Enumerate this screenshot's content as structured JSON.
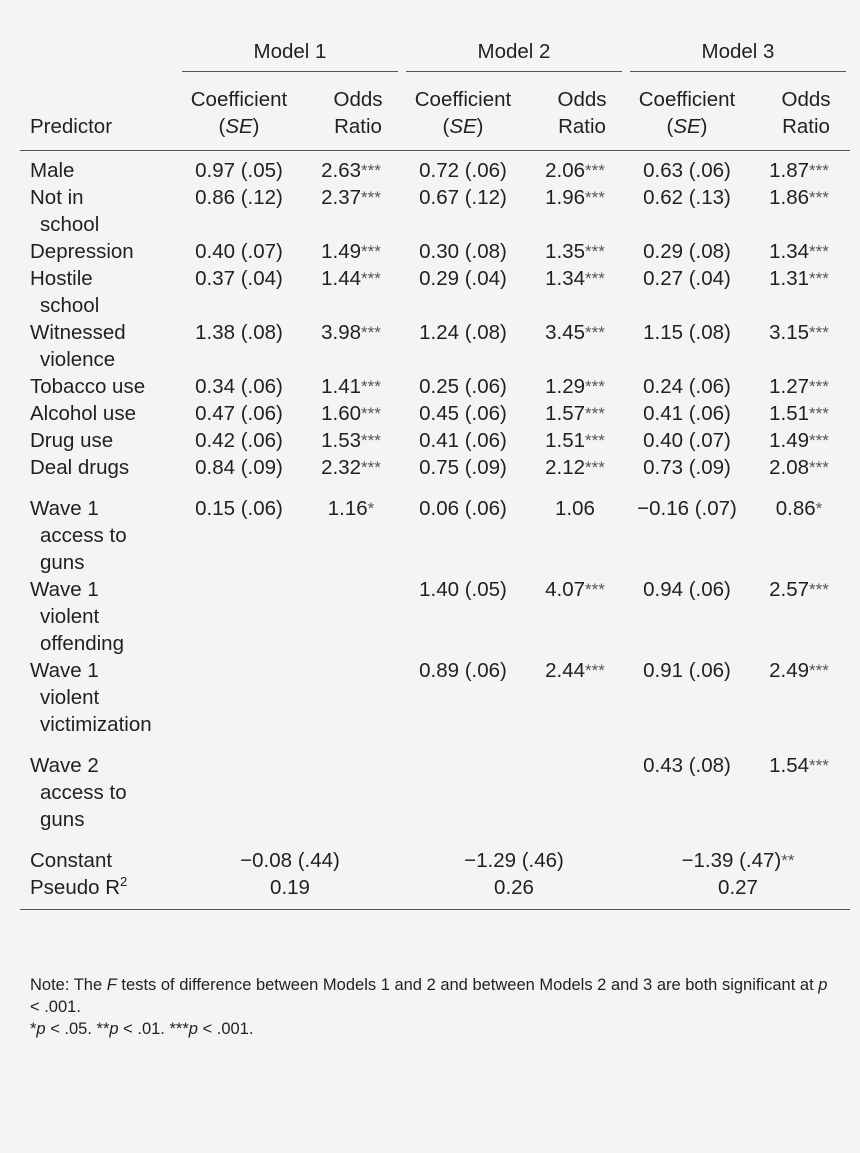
{
  "header": {
    "models": [
      "Model 1",
      "Model 2",
      "Model 3"
    ],
    "predictor_label": "Predictor",
    "coef_label_line1": "Coefficient",
    "coef_label_line2_pre": "(",
    "coef_label_se": "SE",
    "coef_label_line2_post": ")",
    "odds_label_line1": "Odds",
    "odds_label_line2": "Ratio"
  },
  "rows": [
    {
      "label": [
        "Male"
      ],
      "cells": [
        [
          "0.97 (.05)",
          "2.63",
          "***"
        ],
        [
          "0.72 (.06)",
          "2.06",
          "***"
        ],
        [
          "0.63 (.06)",
          "1.87",
          "***"
        ]
      ]
    },
    {
      "label": [
        "Not in",
        "school"
      ],
      "cells": [
        [
          "0.86 (.12)",
          "2.37",
          "***"
        ],
        [
          "0.67 (.12)",
          "1.96",
          "***"
        ],
        [
          "0.62 (.13)",
          "1.86",
          "***"
        ]
      ]
    },
    {
      "label": [
        "Depression"
      ],
      "cells": [
        [
          "0.40 (.07)",
          "1.49",
          "***"
        ],
        [
          "0.30 (.08)",
          "1.35",
          "***"
        ],
        [
          "0.29 (.08)",
          "1.34",
          "***"
        ]
      ]
    },
    {
      "label": [
        "Hostile",
        "school"
      ],
      "cells": [
        [
          "0.37 (.04)",
          "1.44",
          "***"
        ],
        [
          "0.29 (.04)",
          "1.34",
          "***"
        ],
        [
          "0.27 (.04)",
          "1.31",
          "***"
        ]
      ]
    },
    {
      "label": [
        "Witnessed",
        "violence"
      ],
      "cells": [
        [
          "1.38 (.08)",
          "3.98",
          "***"
        ],
        [
          "1.24 (.08)",
          "3.45",
          "***"
        ],
        [
          "1.15 (.08)",
          "3.15",
          "***"
        ]
      ]
    },
    {
      "label": [
        "Tobacco use"
      ],
      "cells": [
        [
          "0.34 (.06)",
          "1.41",
          "***"
        ],
        [
          "0.25 (.06)",
          "1.29",
          "***"
        ],
        [
          "0.24 (.06)",
          "1.27",
          "***"
        ]
      ]
    },
    {
      "label": [
        "Alcohol use"
      ],
      "cells": [
        [
          "0.47 (.06)",
          "1.60",
          "***"
        ],
        [
          "0.45 (.06)",
          "1.57",
          "***"
        ],
        [
          "0.41 (.06)",
          "1.51",
          "***"
        ]
      ]
    },
    {
      "label": [
        "Drug use"
      ],
      "cells": [
        [
          "0.42 (.06)",
          "1.53",
          "***"
        ],
        [
          "0.41 (.06)",
          "1.51",
          "***"
        ],
        [
          "0.40 (.07)",
          "1.49",
          "***"
        ]
      ]
    },
    {
      "label": [
        "Deal drugs"
      ],
      "cells": [
        [
          "0.84 (.09)",
          "2.32",
          "***"
        ],
        [
          "0.75 (.09)",
          "2.12",
          "***"
        ],
        [
          "0.73 (.09)",
          "2.08",
          "***"
        ]
      ]
    },
    {
      "label": [
        "Wave 1",
        "access to",
        "guns"
      ],
      "cells": [
        [
          "0.15 (.06)",
          "1.16",
          "*"
        ],
        [
          "0.06 (.06)",
          "1.06",
          ""
        ],
        [
          "−0.16 (.07)",
          "0.86",
          "*"
        ]
      ]
    },
    {
      "label": [
        "Wave 1",
        "violent",
        "offending"
      ],
      "cells": [
        [
          "",
          "",
          ""
        ],
        [
          "1.40 (.05)",
          "4.07",
          "***"
        ],
        [
          "0.94 (.06)",
          "2.57",
          "***"
        ]
      ]
    },
    {
      "label": [
        "Wave 1",
        "violent",
        "victimization"
      ],
      "cells": [
        [
          "",
          "",
          ""
        ],
        [
          "0.89 (.06)",
          "2.44",
          "***"
        ],
        [
          "0.91 (.06)",
          "2.49",
          "***"
        ]
      ]
    },
    {
      "label": [
        "Wave 2",
        "access to",
        "guns"
      ],
      "cells": [
        [
          "",
          "",
          ""
        ],
        [
          "",
          "",
          ""
        ],
        [
          "0.43 (.08)",
          "1.54",
          "***"
        ]
      ]
    }
  ],
  "constant": {
    "label": "Constant",
    "values": [
      [
        "−0.08 (.44)",
        ""
      ],
      [
        "−1.29 (.46)",
        ""
      ],
      [
        "−1.39 (.47)",
        "**"
      ]
    ]
  },
  "pseudo_r2": {
    "label": "Pseudo R",
    "sup": "2",
    "values": [
      "0.19",
      "0.26",
      "0.27"
    ]
  },
  "note": {
    "line1_a": "Note: The ",
    "line1_f": "F",
    "line1_b": " tests of difference between Models 1 and 2 and between Models 2 and 3 are both significant at ",
    "line1_p": "p",
    "line1_c": " < .001.",
    "sig": [
      {
        "stars": "*",
        "p": "p",
        "text": " < .05. "
      },
      {
        "stars": "**",
        "p": "p",
        "text": " < .01. "
      },
      {
        "stars": "***",
        "p": "p",
        "text": " < .001."
      }
    ]
  }
}
